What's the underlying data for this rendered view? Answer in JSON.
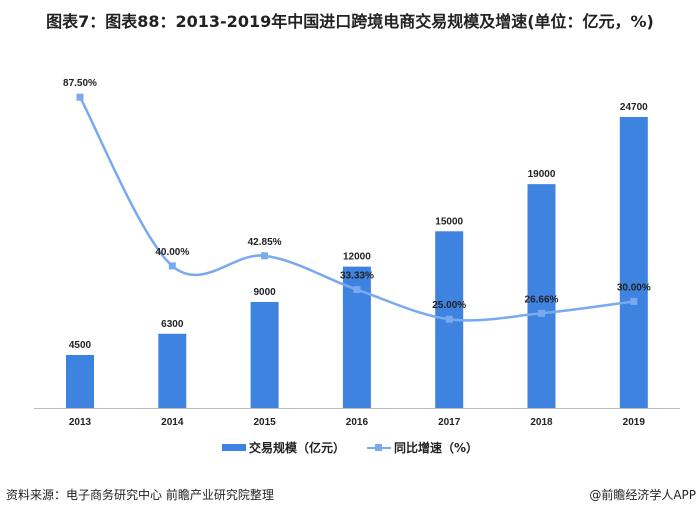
{
  "title": "图表7：图表88：2013-2019年中国进口跨境电商交易规模及增速(单位：亿元，%)",
  "chart_data": {
    "type": "bar+line",
    "categories": [
      "2013",
      "2014",
      "2015",
      "2016",
      "2017",
      "2018",
      "2019"
    ],
    "series": [
      {
        "name": "交易规模（亿元）",
        "type": "bar",
        "values": [
          4500,
          6300,
          9000,
          12000,
          15000,
          19000,
          24700
        ],
        "labels": [
          "4500",
          "6300",
          "9000",
          "12000",
          "15000",
          "19000",
          "24700"
        ],
        "color": "#3f83e0"
      },
      {
        "name": "同比增速（%）",
        "type": "line",
        "smooth": true,
        "values": [
          87.5,
          40.0,
          42.85,
          33.33,
          25.0,
          26.66,
          30.0
        ],
        "labels": [
          "87.50%",
          "40.00%",
          "42.85%",
          "33.33%",
          "25.00%",
          "26.66%",
          "30.00%"
        ],
        "color": "#79a9ee"
      }
    ],
    "grid": false,
    "legend": "bottom"
  },
  "footer": {
    "source": "资料来源：电子商务研究中心 前瞻产业研究院整理",
    "brand": "@前瞻经济学人APP"
  }
}
